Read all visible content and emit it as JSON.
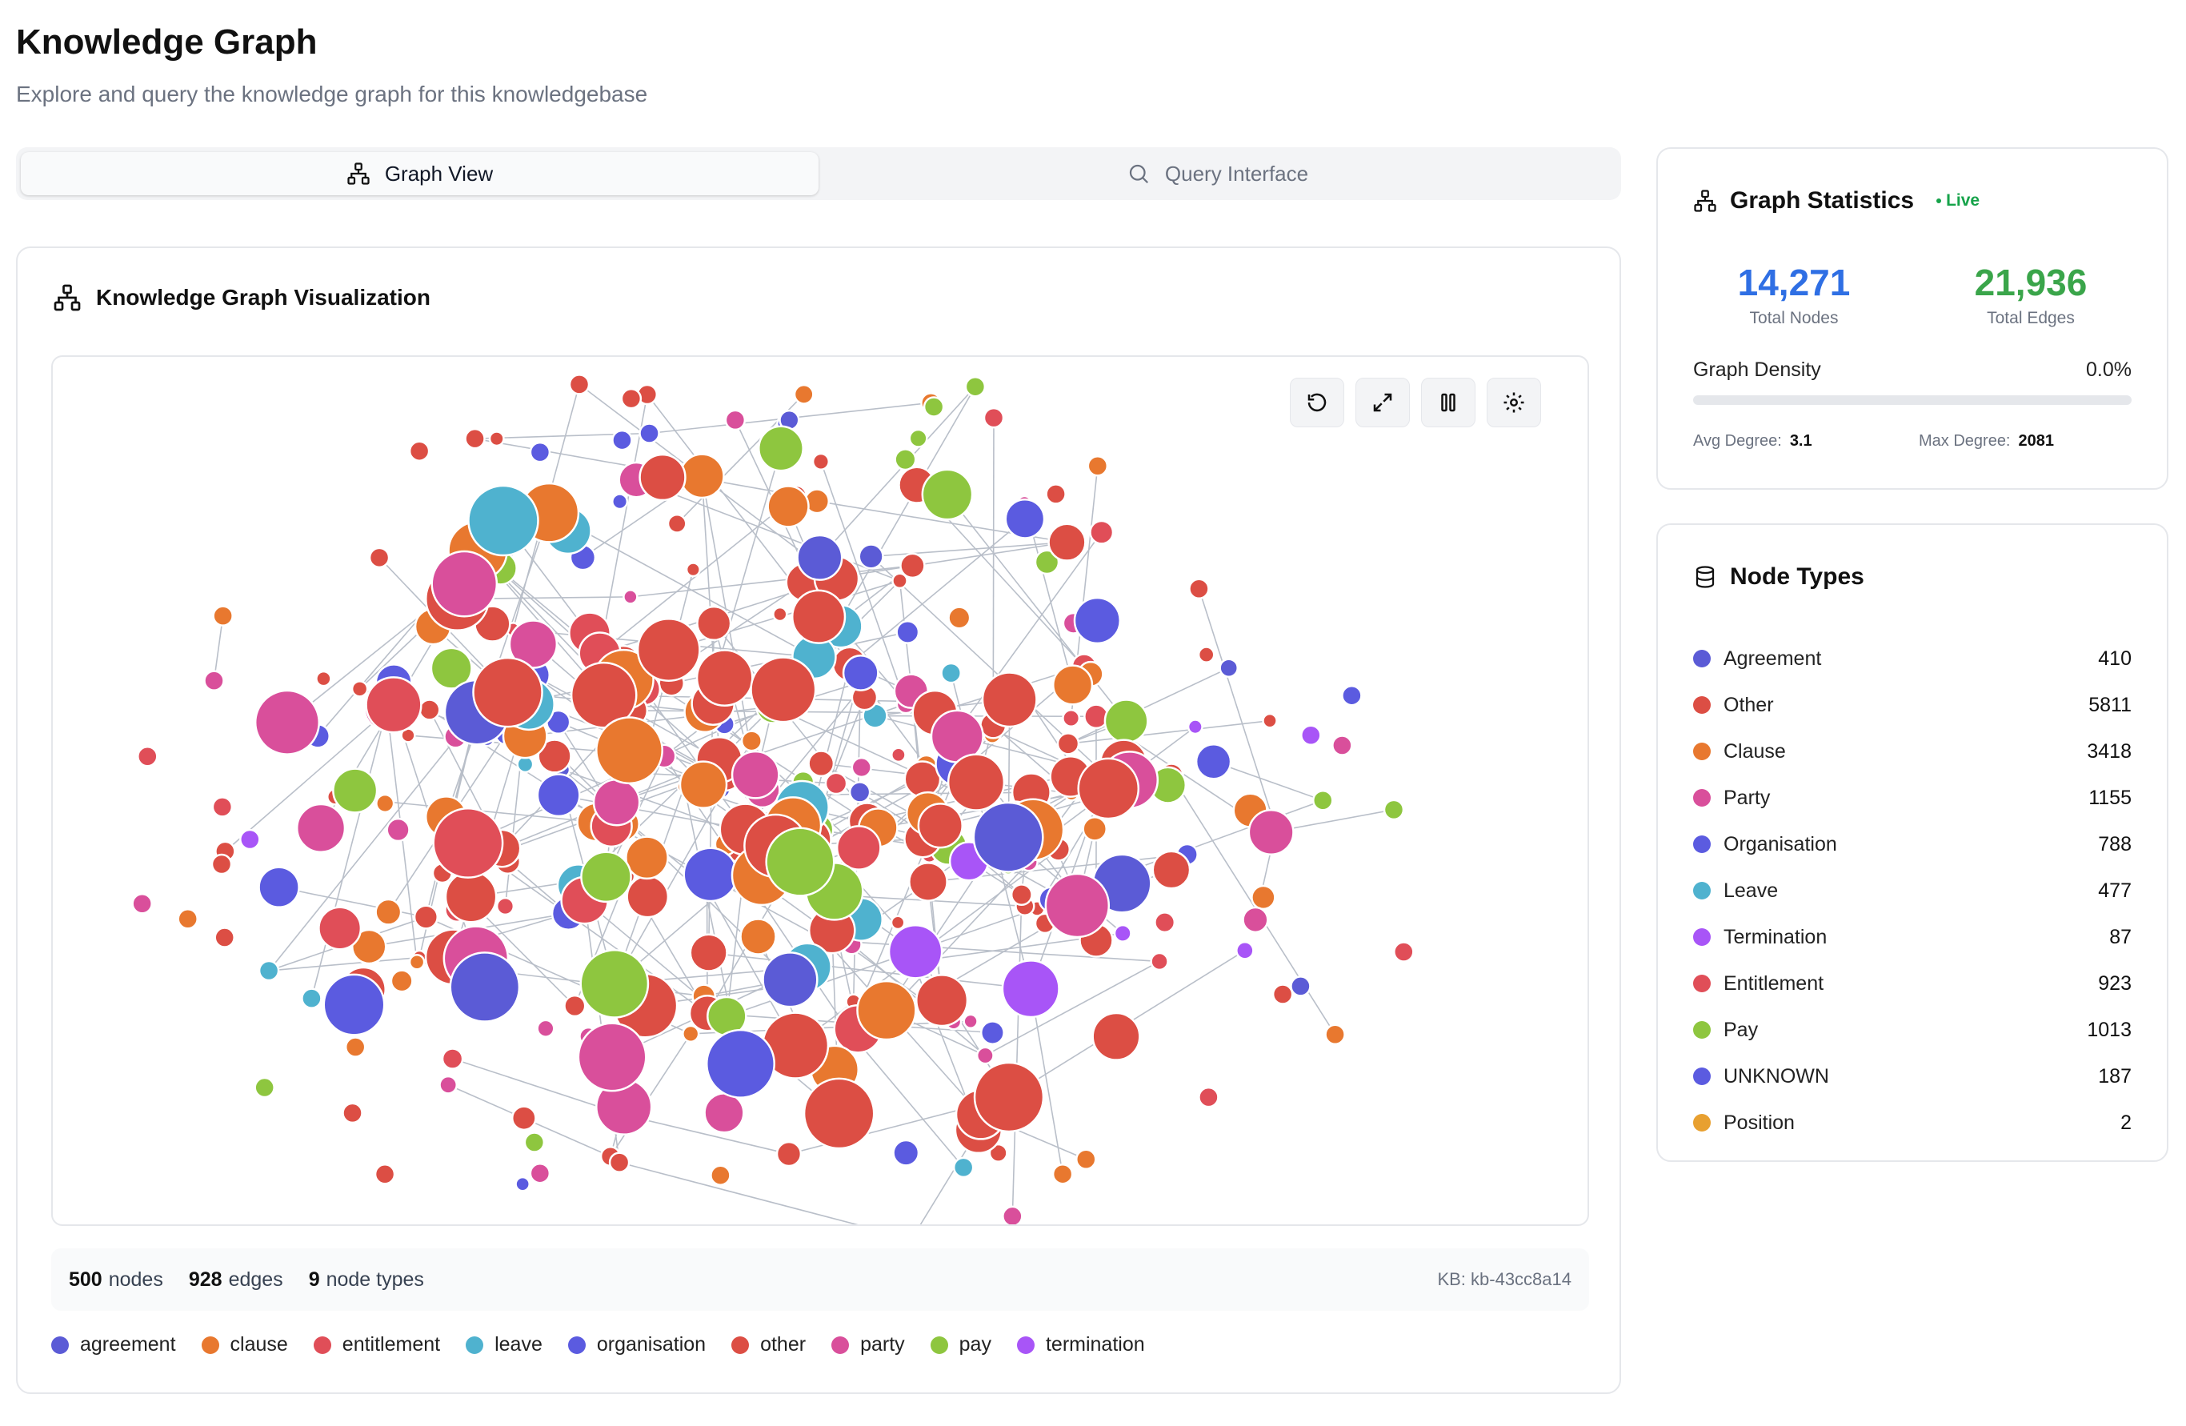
{
  "header": {
    "title": "Knowledge Graph",
    "subtitle": "Explore and query the knowledge graph for this knowledgebase"
  },
  "tabs": [
    {
      "label": "Graph View",
      "icon": "network-icon",
      "active": true
    },
    {
      "label": "Query Interface",
      "icon": "search-icon",
      "active": false
    }
  ],
  "visualization": {
    "title": "Knowledge Graph Visualization",
    "controls": [
      "reset-icon",
      "expand-icon",
      "pause-icon",
      "settings-icon"
    ],
    "stats": {
      "nodes_value": "500",
      "nodes_label": "nodes",
      "edges_value": "928",
      "edges_label": "edges",
      "types_value": "9",
      "types_label": "node types",
      "kb_id": "KB: kb-43cc8a14"
    },
    "legend": [
      {
        "label": "agreement",
        "color": "#5b5bd6"
      },
      {
        "label": "clause",
        "color": "#e8782f"
      },
      {
        "label": "entitlement",
        "color": "#e04e58"
      },
      {
        "label": "leave",
        "color": "#4fb2cf"
      },
      {
        "label": "organisation",
        "color": "#5b5be0"
      },
      {
        "label": "other",
        "color": "#dc4e44"
      },
      {
        "label": "party",
        "color": "#d94f9b"
      },
      {
        "label": "pay",
        "color": "#8ec63f"
      },
      {
        "label": "termination",
        "color": "#a855f7"
      }
    ]
  },
  "graph_statistics": {
    "title": "Graph Statistics",
    "live_label": "Live",
    "total_nodes": "14,271",
    "total_nodes_label": "Total Nodes",
    "total_edges": "21,936",
    "total_edges_label": "Total Edges",
    "density_label": "Graph Density",
    "density_value": "0.0%",
    "avg_degree_label": "Avg Degree:",
    "avg_degree_value": "3.1",
    "max_degree_label": "Max Degree:",
    "max_degree_value": "2081",
    "colors": {
      "nodes": "#2f6fe4",
      "edges": "#3aa54a"
    }
  },
  "node_types": {
    "title": "Node Types",
    "items": [
      {
        "label": "Agreement",
        "count": "410",
        "color": "#5b5bd6"
      },
      {
        "label": "Other",
        "count": "5811",
        "color": "#dc4e44"
      },
      {
        "label": "Clause",
        "count": "3418",
        "color": "#e8782f"
      },
      {
        "label": "Party",
        "count": "1155",
        "color": "#d94f9b"
      },
      {
        "label": "Organisation",
        "count": "788",
        "color": "#5b5be0"
      },
      {
        "label": "Leave",
        "count": "477",
        "color": "#4fb2cf"
      },
      {
        "label": "Termination",
        "count": "87",
        "color": "#a855f7"
      },
      {
        "label": "Entitlement",
        "count": "923",
        "color": "#e04e58"
      },
      {
        "label": "Pay",
        "count": "1013",
        "color": "#8ec63f"
      },
      {
        "label": "UNKNOWN",
        "count": "187",
        "color": "#5b5be0"
      },
      {
        "label": "Position",
        "count": "2",
        "color": "#e8a030"
      }
    ]
  }
}
